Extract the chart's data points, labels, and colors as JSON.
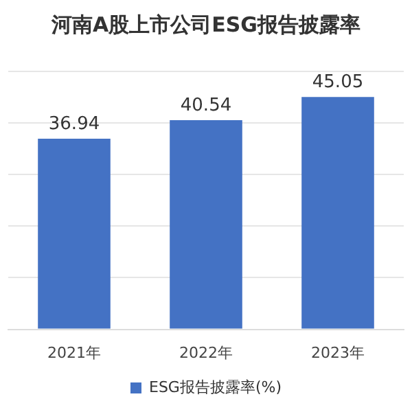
{
  "chart_data": {
    "type": "bar",
    "title": "河南A股上市公司ESG报告披露率",
    "categories": [
      "2021年",
      "2022年",
      "2023年"
    ],
    "series": [
      {
        "name": "ESG报告披露率(%)",
        "color": "#4472c4",
        "values": [
          36.94,
          40.54,
          45.05
        ]
      }
    ],
    "ylim": [
      0,
      50
    ],
    "yticks": [
      {
        "value": 0,
        "label": null
      },
      {
        "value": 10,
        "label": null
      },
      {
        "value": 20,
        "label": null
      },
      {
        "value": 30,
        "label": null
      },
      {
        "value": 40,
        "label": null
      },
      {
        "value": 50,
        "label": null
      }
    ],
    "tick_labels": "x",
    "grid": "y",
    "legend": "bottom",
    "data_labels": true
  }
}
